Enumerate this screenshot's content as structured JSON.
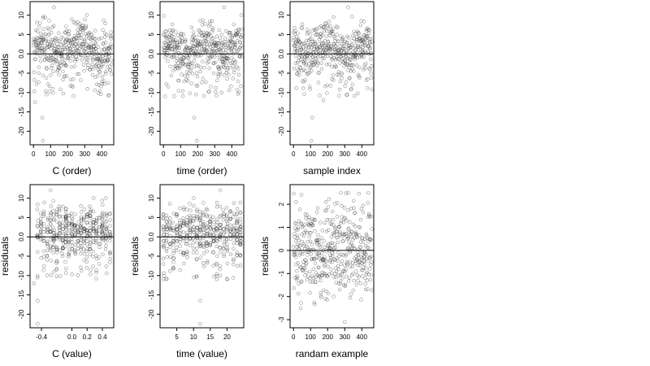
{
  "figure": {
    "panels": [
      {
        "id": "c-order",
        "xlabel": "C (order)",
        "ylabel": "residuals"
      },
      {
        "id": "time-order",
        "xlabel": "time (order)",
        "ylabel": "residuals"
      },
      {
        "id": "sample-index",
        "xlabel": "sample index",
        "ylabel": "residuals"
      },
      {
        "id": "c-value",
        "xlabel": "C (value)",
        "ylabel": "residuals"
      },
      {
        "id": "time-value",
        "xlabel": "time (value)",
        "ylabel": "residuals"
      },
      {
        "id": "random-example",
        "xlabel": "randam example",
        "ylabel": "residuals"
      }
    ]
  },
  "chart_data": [
    {
      "type": "scatter",
      "title": "",
      "xlabel": "C (order)",
      "ylabel": "residuals",
      "xlim": [
        -20,
        470
      ],
      "ylim": [
        -23.5,
        13.5
      ],
      "xticks": [
        0,
        100,
        200,
        300,
        400
      ],
      "yticks": [
        -20,
        -15,
        -10,
        -5,
        0,
        5,
        10
      ],
      "ytick_labels": [
        "-20",
        "-15",
        "-10",
        "-5",
        "0.0",
        "5",
        "10"
      ],
      "hline": 0,
      "point_count": 460,
      "point_style": "open circle, grey",
      "grid": false,
      "notable_points": [
        {
          "x": 52,
          "y": -16.5
        },
        {
          "x": 55,
          "y": -22.5
        },
        {
          "x": 120,
          "y": 12
        },
        {
          "x": 10,
          "y": -12.5
        }
      ]
    },
    {
      "type": "scatter",
      "title": "",
      "xlabel": "time (order)",
      "ylabel": "residuals",
      "xlim": [
        -20,
        470
      ],
      "ylim": [
        -23.5,
        13.5
      ],
      "xticks": [
        0,
        100,
        200,
        300,
        400
      ],
      "yticks": [
        -20,
        -15,
        -10,
        -5,
        0,
        5,
        10
      ],
      "ytick_labels": [
        "-20",
        "-15",
        "-10",
        "-5",
        "0.0",
        "5",
        "10"
      ],
      "hline": 0,
      "point_count": 460,
      "point_style": "open circle, grey",
      "grid": false,
      "notable_points": [
        {
          "x": 180,
          "y": -16.5
        },
        {
          "x": 195,
          "y": -22.5
        },
        {
          "x": 355,
          "y": 12
        },
        {
          "x": 10,
          "y": -11
        }
      ]
    },
    {
      "type": "scatter",
      "title": "",
      "xlabel": "sample index",
      "ylabel": "residuals",
      "xlim": [
        -20,
        470
      ],
      "ylim": [
        -23.5,
        13.5
      ],
      "xticks": [
        0,
        100,
        200,
        300,
        400
      ],
      "yticks": [
        -20,
        -15,
        -10,
        -5,
        0,
        5,
        10
      ],
      "ytick_labels": [
        "-20",
        "-15",
        "-10",
        "-5",
        "0.0",
        "5",
        "10"
      ],
      "hline": 0,
      "point_count": 460,
      "point_style": "open circle, grey",
      "grid": false,
      "notable_points": [
        {
          "x": 110,
          "y": -16.5
        },
        {
          "x": 105,
          "y": -22.5
        },
        {
          "x": 320,
          "y": 12
        },
        {
          "x": 175,
          "y": -12
        }
      ]
    },
    {
      "type": "scatter",
      "title": "",
      "xlabel": "C (value)",
      "ylabel": "residuals",
      "xlim": [
        -0.55,
        0.55
      ],
      "ylim": [
        -23.5,
        13.5
      ],
      "xticks": [
        -0.4,
        0.0,
        0.2,
        0.4
      ],
      "xtick_labels": [
        "-0.4",
        "0.0",
        "0.2",
        "0.4"
      ],
      "yticks": [
        -20,
        -15,
        -10,
        -5,
        0,
        5,
        10
      ],
      "ytick_labels": [
        "-20",
        "-15",
        "-10",
        "-5",
        "0.0",
        "5",
        "10"
      ],
      "hline": 0,
      "point_count": 460,
      "point_style": "open circle, grey",
      "grid": false,
      "notable_points": [
        {
          "x": -0.45,
          "y": -16.5
        },
        {
          "x": -0.45,
          "y": -22.5
        },
        {
          "x": -0.28,
          "y": 12
        },
        {
          "x": -0.5,
          "y": -12
        }
      ]
    },
    {
      "type": "scatter",
      "title": "",
      "xlabel": "time (value)",
      "ylabel": "residuals",
      "xlim": [
        0,
        25
      ],
      "ylim": [
        -23.5,
        13.5
      ],
      "xticks": [
        5,
        10,
        15,
        20
      ],
      "yticks": [
        -20,
        -15,
        -10,
        -5,
        0,
        5,
        10
      ],
      "ytick_labels": [
        "-20",
        "-15",
        "-10",
        "-5",
        "0.0",
        "5",
        "10"
      ],
      "hline": 0,
      "point_count": 460,
      "point_style": "open circle, grey",
      "grid": false,
      "notable_points": [
        {
          "x": 12,
          "y": -16.5
        },
        {
          "x": 12,
          "y": -22.5
        },
        {
          "x": 18,
          "y": 12
        },
        {
          "x": 1,
          "y": -11
        }
      ]
    },
    {
      "type": "scatter",
      "title": "",
      "xlabel": "randam example",
      "ylabel": "residuals",
      "xlim": [
        -20,
        470
      ],
      "ylim": [
        -3.35,
        2.85
      ],
      "xticks": [
        0,
        100,
        200,
        300,
        400
      ],
      "yticks": [
        -3,
        -2,
        -1,
        0,
        1,
        2
      ],
      "ytick_labels": [
        "-3",
        "-2",
        "-1",
        "0",
        "1",
        "2"
      ],
      "hline": 0,
      "point_count": 460,
      "point_style": "open circle, grey",
      "grid": false,
      "notable_points": [
        {
          "x": 320,
          "y": 2.5
        },
        {
          "x": 300,
          "y": -3.1
        },
        {
          "x": 15,
          "y": 2.1
        }
      ]
    }
  ]
}
